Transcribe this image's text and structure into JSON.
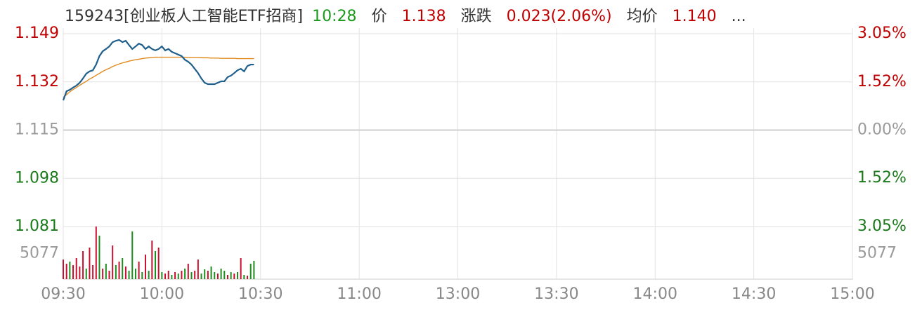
{
  "header": {
    "code_name": "159243[创业板人工智能ETF招商]",
    "time": "10:28",
    "price_label": "价",
    "price": "1.138",
    "change_label": "涨跌",
    "change": "0.023(2.06%)",
    "avg_label": "均价",
    "avg": "1.140",
    "more": "..."
  },
  "chart_data": {
    "type": "line",
    "x": [
      "09:30",
      "09:31",
      "09:32",
      "09:33",
      "09:34",
      "09:35",
      "09:36",
      "09:37",
      "09:38",
      "09:39",
      "09:40",
      "09:41",
      "09:42",
      "09:43",
      "09:44",
      "09:45",
      "09:46",
      "09:47",
      "09:48",
      "09:49",
      "09:50",
      "09:51",
      "09:52",
      "09:53",
      "09:54",
      "09:55",
      "09:56",
      "09:57",
      "09:58",
      "09:59",
      "10:00",
      "10:01",
      "10:02",
      "10:03",
      "10:04",
      "10:05",
      "10:06",
      "10:07",
      "10:08",
      "10:09",
      "10:10",
      "10:11",
      "10:12",
      "10:13",
      "10:14",
      "10:15",
      "10:16",
      "10:17",
      "10:18",
      "10:19",
      "10:20",
      "10:21",
      "10:22",
      "10:23",
      "10:24",
      "10:25",
      "10:26",
      "10:27",
      "10:28"
    ],
    "price": {
      "color": "#1f5f8b",
      "values": [
        1.1255,
        1.1287,
        1.1292,
        1.13,
        1.1307,
        1.1317,
        1.1332,
        1.1349,
        1.1357,
        1.1361,
        1.1381,
        1.1411,
        1.1428,
        1.1436,
        1.1445,
        1.146,
        1.1465,
        1.1468,
        1.146,
        1.1465,
        1.145,
        1.1436,
        1.1445,
        1.1455,
        1.145,
        1.1436,
        1.1445,
        1.1436,
        1.1431,
        1.1436,
        1.1445,
        1.1431,
        1.1436,
        1.1426,
        1.1421,
        1.1416,
        1.1411,
        1.1398,
        1.1391,
        1.1381,
        1.1366,
        1.1351,
        1.1332,
        1.1317,
        1.1312,
        1.1312,
        1.1312,
        1.1317,
        1.1322,
        1.1322,
        1.1337,
        1.1342,
        1.1351,
        1.1361,
        1.1366,
        1.1357,
        1.1376,
        1.1381,
        1.1381
      ]
    },
    "average": {
      "color": "#e08a1e",
      "values": [
        1.1265,
        1.1275,
        1.1285,
        1.1293,
        1.13,
        1.1308,
        1.1315,
        1.1322,
        1.133,
        1.1336,
        1.1343,
        1.135,
        1.1357,
        1.1363,
        1.1368,
        1.1374,
        1.1379,
        1.1383,
        1.1387,
        1.139,
        1.1393,
        1.1396,
        1.1398,
        1.14,
        1.1402,
        1.1404,
        1.1405,
        1.1406,
        1.1407,
        1.1407,
        1.1407,
        1.1407,
        1.1407,
        1.1407,
        1.1407,
        1.1407,
        1.1407,
        1.1407,
        1.1406,
        1.1406,
        1.1406,
        1.1406,
        1.1405,
        1.1405,
        1.1405,
        1.1404,
        1.1404,
        1.1404,
        1.1403,
        1.1403,
        1.1403,
        1.1403,
        1.1403,
        1.1402,
        1.1402,
        1.1402,
        1.1402,
        1.1402,
        1.1402
      ]
    },
    "volume": {
      "values": [
        3906,
        3069,
        3488,
        2790,
        4185,
        2511,
        5580,
        2093,
        6278,
        2790,
        10463,
        8649,
        2093,
        3069,
        1674,
        6696,
        2790,
        3488,
        4185,
        2511,
        1674,
        9486,
        2093,
        3488,
        1395,
        4883,
        1674,
        7673,
        5580,
        6278,
        1395,
        1116,
        1674,
        837,
        1395,
        1116,
        1674,
        2093,
        3069,
        1395,
        1674,
        3906,
        1116,
        1953,
        1674,
        2511,
        1395,
        1116,
        2093,
        1674,
        837,
        1395,
        1116,
        1395,
        4185,
        837,
        698,
        3069,
        3627
      ],
      "colors": [
        "#c8102e",
        "#c8102e",
        "#1e8c1e",
        "#c8102e",
        "#c8102e",
        "#c8102e",
        "#c8102e",
        "#1e8c1e",
        "#c8102e",
        "#c8102e",
        "#c8102e",
        "#1e8c1e",
        "#c8102e",
        "#1e8c1e",
        "#c8102e",
        "#c8102e",
        "#1e8c1e",
        "#c8102e",
        "#1e8c1e",
        "#c8102e",
        "#1e8c1e",
        "#1e8c1e",
        "#1e8c1e",
        "#c8102e",
        "#1e8c1e",
        "#c8102e",
        "#1e8c1e",
        "#c8102e",
        "#1e8c1e",
        "#c8102e",
        "#1e8c1e",
        "#c8102e",
        "#c8102e",
        "#1e8c1e",
        "#c8102e",
        "#1e8c1e",
        "#c8102e",
        "#1e8c1e",
        "#c8102e",
        "#1e8c1e",
        "#c8102e",
        "#c8102e",
        "#1e8c1e",
        "#1e8c1e",
        "#c8102e",
        "#1e8c1e",
        "#1e8c1e",
        "#c8102e",
        "#1e8c1e",
        "#1e8c1e",
        "#c8102e",
        "#1e8c1e",
        "#c8102e",
        "#1e8c1e",
        "#c8102e",
        "#1e8c1e",
        "#c8102e",
        "#1e8c1e",
        "#1e8c1e"
      ],
      "vlim": [
        0,
        10600
      ],
      "vticks": [
        5077
      ]
    },
    "xticks": [
      "09:30",
      "10:00",
      "10:30",
      "11:00",
      "13:00",
      "13:30",
      "14:00",
      "14:30",
      "15:00"
    ],
    "ylim": [
      1.081,
      1.149
    ],
    "yticks": [
      1.149,
      1.132,
      1.115,
      1.098,
      1.081
    ],
    "y2lim": [
      -3.05,
      3.05
    ],
    "y2ticks": [
      {
        "value": 3.05,
        "label": "3.05%"
      },
      {
        "value": 1.52,
        "label": "1.52%"
      },
      {
        "value": 0,
        "label": "0.00%"
      },
      {
        "value": -1.52,
        "label": "1.52%"
      },
      {
        "value": -3.05,
        "label": "3.05%"
      }
    ],
    "up_color": "#c00000",
    "down_color": "#1a7a1a",
    "flat_color": "#999999",
    "grid": true
  }
}
